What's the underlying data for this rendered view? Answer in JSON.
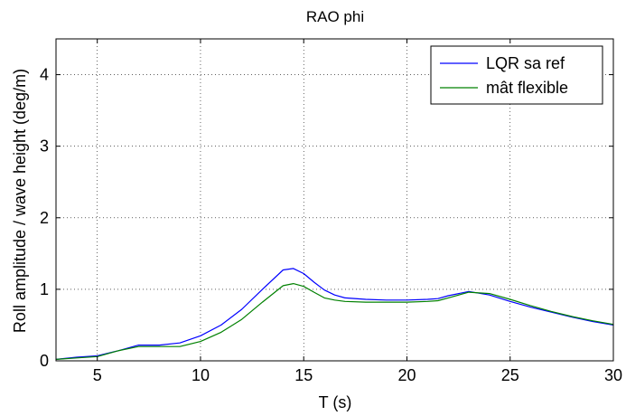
{
  "chart_data": {
    "type": "line",
    "title": "RAO phi",
    "xlabel": "T (s)",
    "ylabel": "Roll amplitude / wave height (deg/m)",
    "xlim": [
      3,
      30
    ],
    "ylim": [
      0,
      4.5
    ],
    "xticks": [
      5,
      10,
      15,
      20,
      25,
      30
    ],
    "yticks": [
      0,
      1,
      2,
      3,
      4
    ],
    "grid": true,
    "legend_position": "top-right",
    "series": [
      {
        "name": "LQR sa ref",
        "color": "#0000ff",
        "x": [
          3,
          4,
          5,
          6,
          7,
          8,
          9,
          10,
          11,
          12,
          13,
          14,
          14.5,
          15,
          15.5,
          16,
          16.5,
          17,
          18,
          19,
          20,
          21,
          21.5,
          22,
          23,
          24,
          25,
          26,
          27,
          28,
          29,
          30
        ],
        "y": [
          0.02,
          0.05,
          0.07,
          0.14,
          0.22,
          0.22,
          0.25,
          0.35,
          0.5,
          0.72,
          1.0,
          1.27,
          1.29,
          1.22,
          1.1,
          0.99,
          0.92,
          0.88,
          0.86,
          0.85,
          0.85,
          0.86,
          0.87,
          0.91,
          0.97,
          0.92,
          0.83,
          0.75,
          0.68,
          0.61,
          0.55,
          0.5
        ]
      },
      {
        "name": "mât flexible",
        "color": "#008000",
        "x": [
          3,
          4,
          5,
          6,
          7,
          8,
          9,
          10,
          11,
          12,
          13,
          14,
          14.5,
          15,
          15.5,
          16,
          16.5,
          17,
          18,
          19,
          20,
          21,
          21.5,
          22,
          23,
          24,
          25,
          26,
          27,
          28,
          29,
          30
        ],
        "y": [
          0.02,
          0.04,
          0.06,
          0.14,
          0.2,
          0.2,
          0.2,
          0.27,
          0.4,
          0.58,
          0.82,
          1.05,
          1.08,
          1.04,
          0.96,
          0.88,
          0.85,
          0.83,
          0.82,
          0.82,
          0.82,
          0.83,
          0.84,
          0.88,
          0.96,
          0.94,
          0.86,
          0.77,
          0.69,
          0.62,
          0.56,
          0.51
        ]
      }
    ]
  }
}
